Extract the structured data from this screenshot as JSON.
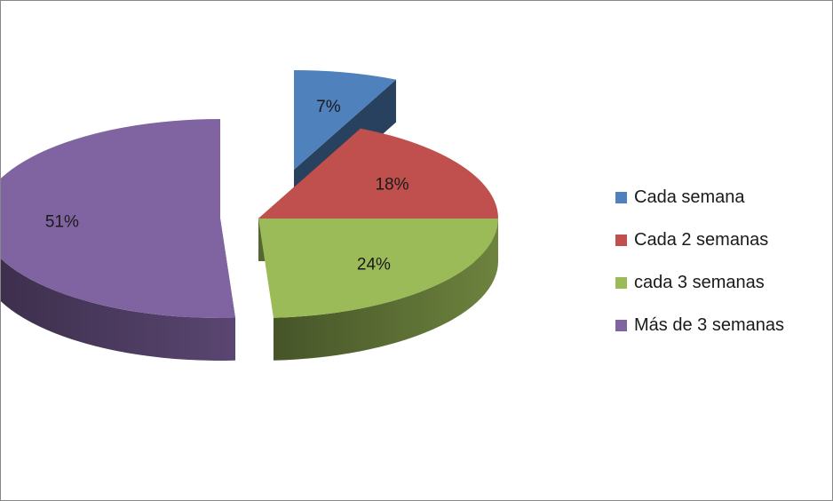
{
  "chart_data": {
    "type": "pie",
    "title": "",
    "style": "3d-exploded",
    "legend_position": "right",
    "categories": [
      "Cada semana",
      "Cada 2 semanas",
      "cada 3 semanas",
      "Más de 3 semanas"
    ],
    "values": [
      7,
      18,
      24,
      51
    ],
    "labels": [
      "7%",
      "18%",
      "24%",
      "51%"
    ],
    "colors": [
      "#4F81BD",
      "#C0504D",
      "#9BBB59",
      "#8064A2"
    ]
  }
}
